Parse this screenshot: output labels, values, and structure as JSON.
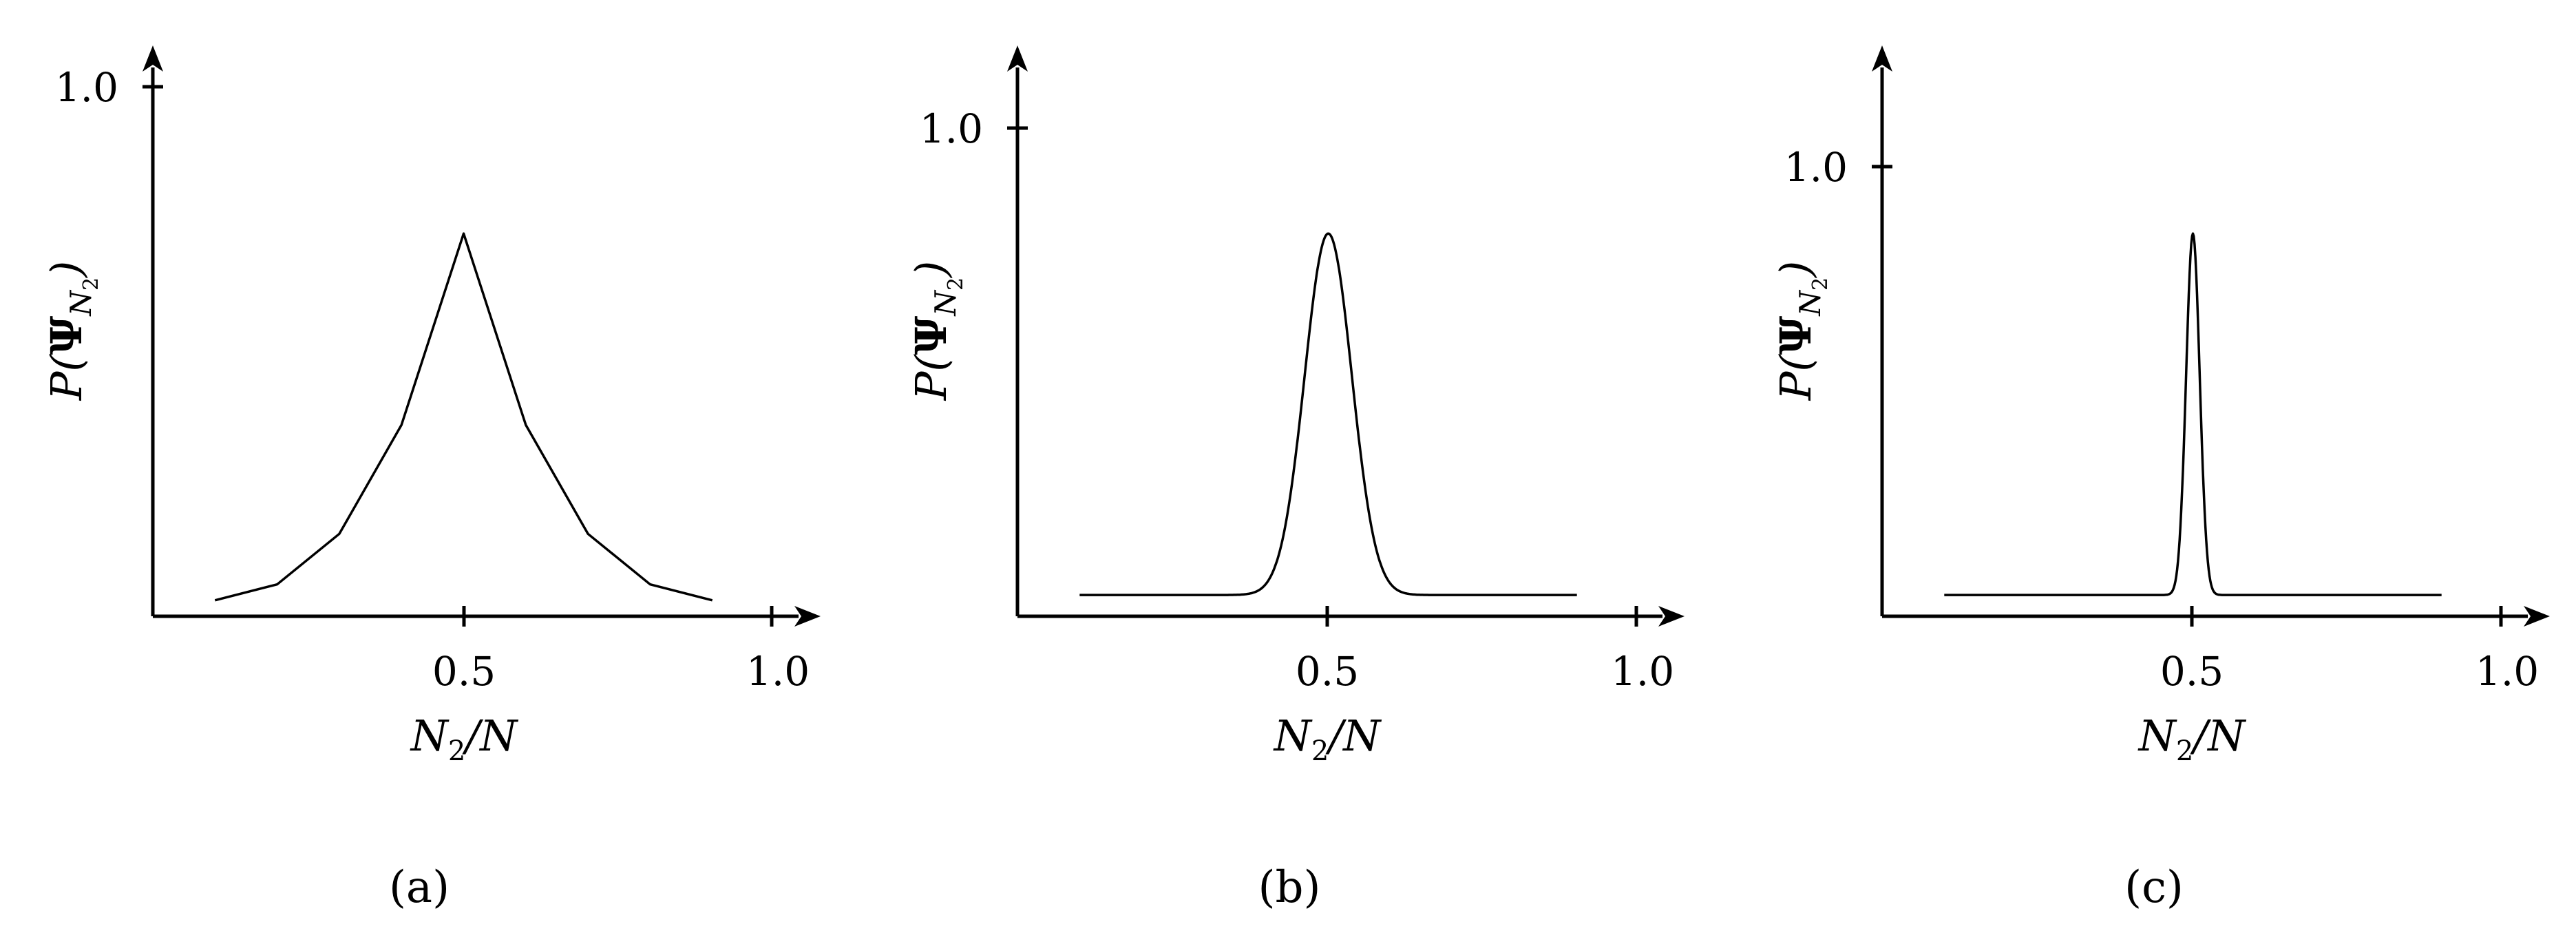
{
  "chart_data": [
    {
      "type": "line",
      "panel_label": "a",
      "xlabel": "N2/N",
      "ylabel": "P(ΨN2)",
      "x_ticks": [
        "0.5",
        "1.0"
      ],
      "y_ticks": [
        "1.0"
      ],
      "xlim": [
        0,
        1.05
      ],
      "ylim": [
        0,
        1.08
      ],
      "x": [
        0.1,
        0.2,
        0.3,
        0.4,
        0.5,
        0.6,
        0.7,
        0.8,
        0.9
      ],
      "y": [
        0.03,
        0.06,
        0.155,
        0.36,
        0.72,
        0.36,
        0.155,
        0.06,
        0.03
      ],
      "grid": false,
      "legend": false
    },
    {
      "type": "line",
      "panel_label": "b",
      "xlabel": "N2/N",
      "ylabel": "P(ΨN2)",
      "x_ticks": [
        "0.5",
        "1.0"
      ],
      "y_ticks": [
        "1.0"
      ],
      "xlim": [
        0,
        1.05
      ],
      "ylim": [
        0,
        1.08
      ],
      "peak": {
        "center": 0.5,
        "height": 0.72,
        "width": 0.038,
        "baseline": 0.04
      },
      "x_range": [
        0.1,
        0.9
      ],
      "grid": false,
      "legend": false
    },
    {
      "type": "line",
      "panel_label": "c",
      "xlabel": "N2/N",
      "ylabel": "P(ΨN2)",
      "x_ticks": [
        "0.5",
        "1.0"
      ],
      "y_ticks": [
        "1.0"
      ],
      "xlim": [
        0,
        1.05
      ],
      "ylim": [
        0,
        1.08
      ],
      "peak": {
        "center": 0.5,
        "height": 0.72,
        "width": 0.011,
        "baseline": 0.04
      },
      "x_range": [
        0.1,
        0.9
      ],
      "grid": false,
      "legend": false
    }
  ],
  "captions": [
    "(a)",
    "(b)",
    "(c)"
  ],
  "labels": {
    "x_main": "N",
    "x_sub": "2",
    "x_rest": "/N",
    "y_main": "P(",
    "y_psi": "Ψ",
    "y_sub_main": "N",
    "y_sub_sub": "2",
    "y_close": ")"
  }
}
